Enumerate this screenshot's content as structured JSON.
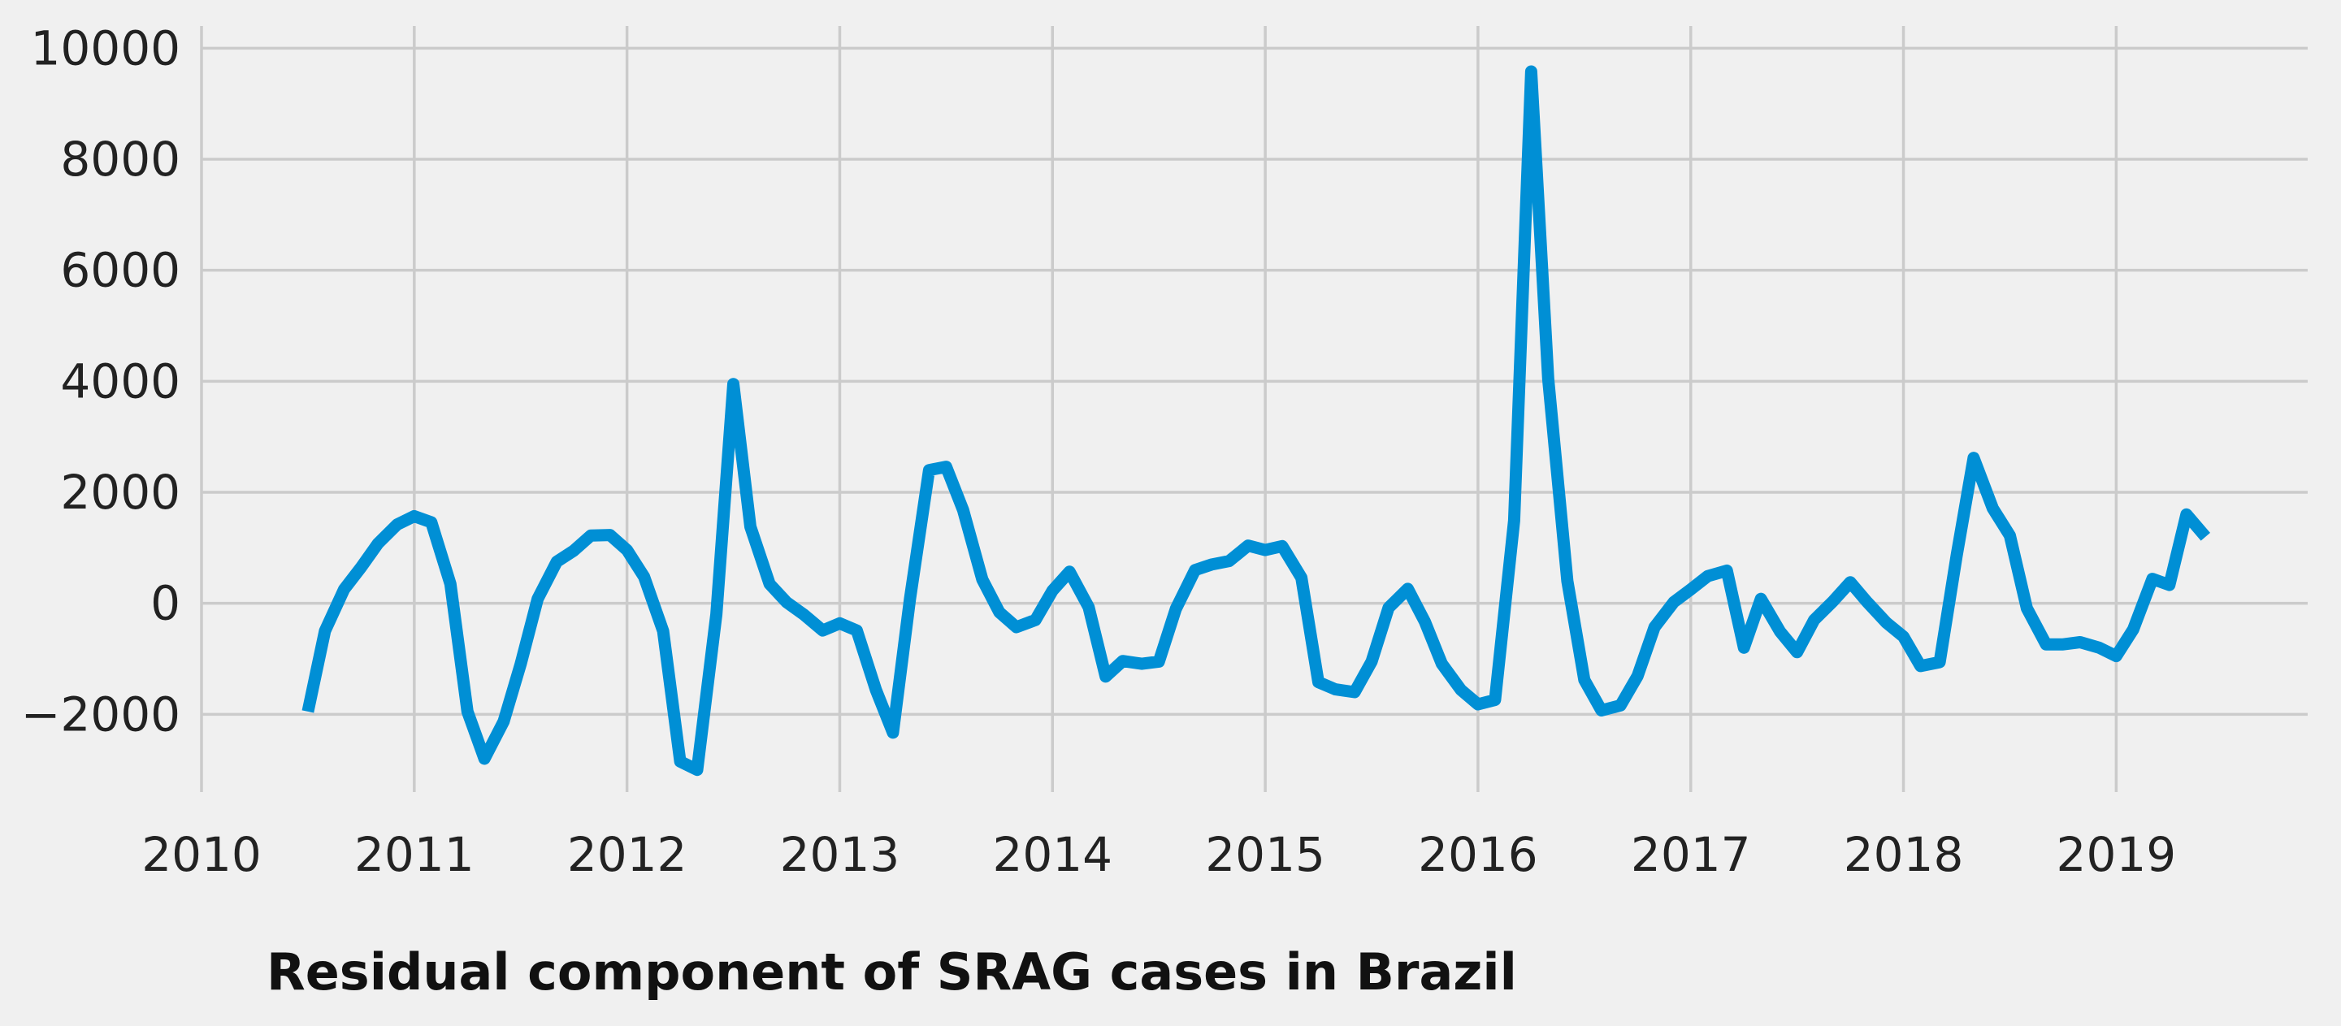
{
  "chart_data": {
    "type": "line",
    "title": "Residual component of SRAG cases in Brazil",
    "xlabel": "",
    "ylabel": "",
    "x_ticks": [
      2010,
      2011,
      2012,
      2013,
      2014,
      2015,
      2016,
      2017,
      2018,
      2019
    ],
    "x_tick_labels": [
      "2010",
      "2011",
      "2012",
      "2013",
      "2014",
      "2015",
      "2016",
      "2017",
      "2018",
      "2019"
    ],
    "y_ticks": [
      -2000,
      0,
      2000,
      4000,
      6000,
      8000,
      10000
    ],
    "y_tick_labels": [
      "−2000",
      "0",
      "2000",
      "4000",
      "6000",
      "8000",
      "10000"
    ],
    "xlim": [
      2010,
      2019.9
    ],
    "ylim": [
      -3400,
      10400
    ],
    "grid": true,
    "legend": "none",
    "colors": {
      "background": "#f0f0f0",
      "grid": "#cbcbcb",
      "line": "#008fd5",
      "text": "#222222"
    },
    "series": [
      {
        "x": [
          2010.5,
          2010.58,
          2010.67,
          2010.75,
          2010.83,
          2010.92,
          2011.0,
          2011.08,
          2011.17,
          2011.25,
          2011.33,
          2011.42,
          2011.5,
          2011.58,
          2011.67,
          2011.75,
          2011.83,
          2011.92,
          2012.0,
          2012.08,
          2012.17,
          2012.25,
          2012.33,
          2012.42,
          2012.5,
          2012.58,
          2012.67,
          2012.75,
          2012.83,
          2012.92,
          2013.0,
          2013.08,
          2013.17,
          2013.25,
          2013.33,
          2013.42,
          2013.5,
          2013.58,
          2013.67,
          2013.75,
          2013.83,
          2013.92,
          2014.0,
          2014.08,
          2014.17,
          2014.25,
          2014.33,
          2014.42,
          2014.5,
          2014.58,
          2014.67,
          2014.75,
          2014.83,
          2014.92,
          2015.0,
          2015.08,
          2015.17,
          2015.25,
          2015.33,
          2015.42,
          2015.5,
          2015.58,
          2015.67,
          2015.75,
          2015.83,
          2015.92,
          2016.0,
          2016.08,
          2016.17,
          2016.25,
          2016.33,
          2016.42,
          2016.5,
          2016.58,
          2016.67,
          2016.75,
          2016.83,
          2016.92,
          2017.0,
          2017.08,
          2017.17,
          2017.25,
          2017.33,
          2017.42,
          2017.5,
          2017.58,
          2017.67,
          2017.75,
          2017.83,
          2017.92,
          2018.0,
          2018.08,
          2018.17,
          2018.25,
          2018.33,
          2018.42,
          2018.5,
          2018.58,
          2018.67,
          2018.75,
          2018.83,
          2018.92,
          2019.0,
          2019.08,
          2019.17,
          2019.25,
          2019.33,
          2019.42
        ],
        "values": [
          -1950,
          -500,
          250,
          650,
          1080,
          1420,
          1570,
          1460,
          350,
          -1950,
          -2800,
          -2130,
          -1100,
          80,
          750,
          950,
          1220,
          1230,
          960,
          480,
          -500,
          -2850,
          -3000,
          -200,
          3950,
          1380,
          350,
          20,
          -200,
          -490,
          -360,
          -490,
          -1560,
          -2330,
          80,
          2400,
          2460,
          1680,
          430,
          -160,
          -430,
          -300,
          230,
          570,
          -70,
          -1320,
          -1040,
          -1090,
          -1050,
          -100,
          600,
          700,
          760,
          1040,
          960,
          1030,
          460,
          -1420,
          -1550,
          -1600,
          -1050,
          -80,
          260,
          -330,
          -1090,
          -1560,
          -1820,
          -1740,
          1490,
          9580,
          4050,
          400,
          -1380,
          -1930,
          -1840,
          -1310,
          -430,
          20,
          250,
          490,
          590,
          -800,
          80,
          -510,
          -880,
          -300,
          40,
          380,
          20,
          -350,
          -600,
          -1130,
          -1060,
          860,
          2620,
          1710,
          1220,
          -90,
          -740,
          -740,
          -700,
          -800,
          -950,
          -470,
          440,
          330,
          1600,
          1200
        ]
      }
    ]
  }
}
